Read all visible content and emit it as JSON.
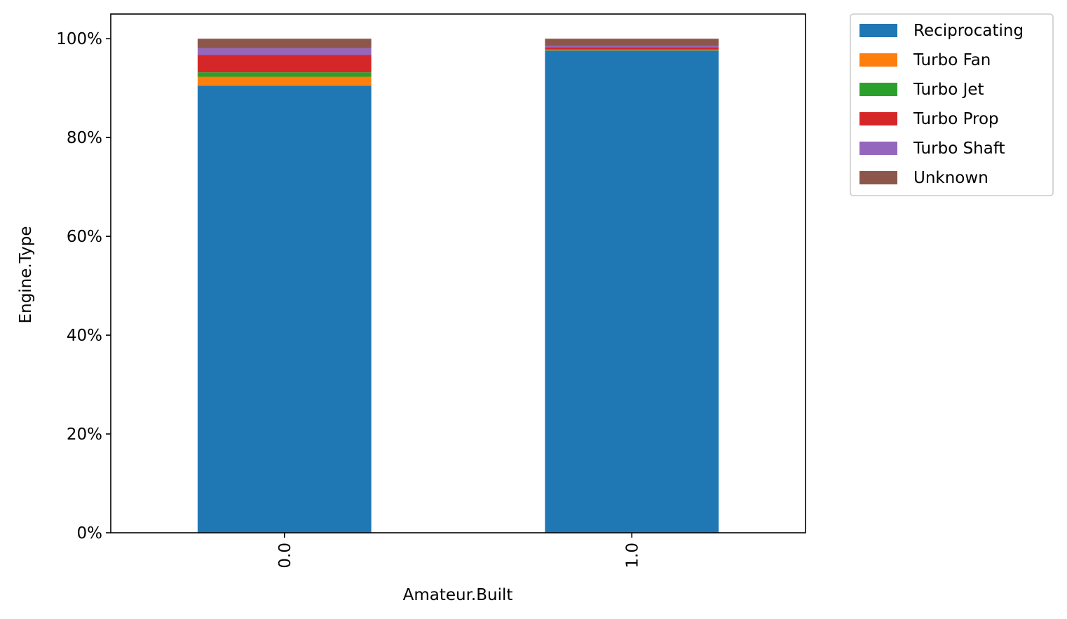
{
  "chart_data": {
    "type": "bar",
    "stacked": true,
    "percent_scale": true,
    "xlabel": "Amateur.Built",
    "ylabel": "Engine.Type",
    "categories": [
      "0.0",
      "1.0"
    ],
    "ylim": [
      0,
      1.05
    ],
    "yticks": [
      {
        "value": 0.0,
        "label": "0%"
      },
      {
        "value": 0.2,
        "label": "20%"
      },
      {
        "value": 0.4,
        "label": "40%"
      },
      {
        "value": 0.6,
        "label": "60%"
      },
      {
        "value": 0.8,
        "label": "80%"
      },
      {
        "value": 1.0,
        "label": "100%"
      }
    ],
    "grid": false,
    "legend_position": "outside-top-right",
    "series": [
      {
        "name": "Reciprocating",
        "color": "#1f77b4",
        "values": [
          0.905,
          0.976
        ]
      },
      {
        "name": "Turbo Fan",
        "color": "#ff7f0e",
        "values": [
          0.018,
          0.001
        ]
      },
      {
        "name": "Turbo Jet",
        "color": "#2ca02c",
        "values": [
          0.009,
          0.001
        ]
      },
      {
        "name": "Turbo Prop",
        "color": "#d62728",
        "values": [
          0.035,
          0.005
        ]
      },
      {
        "name": "Turbo Shaft",
        "color": "#9467bd",
        "values": [
          0.014,
          0.002
        ]
      },
      {
        "name": "Unknown",
        "color": "#8c564b",
        "values": [
          0.019,
          0.015
        ]
      }
    ]
  }
}
